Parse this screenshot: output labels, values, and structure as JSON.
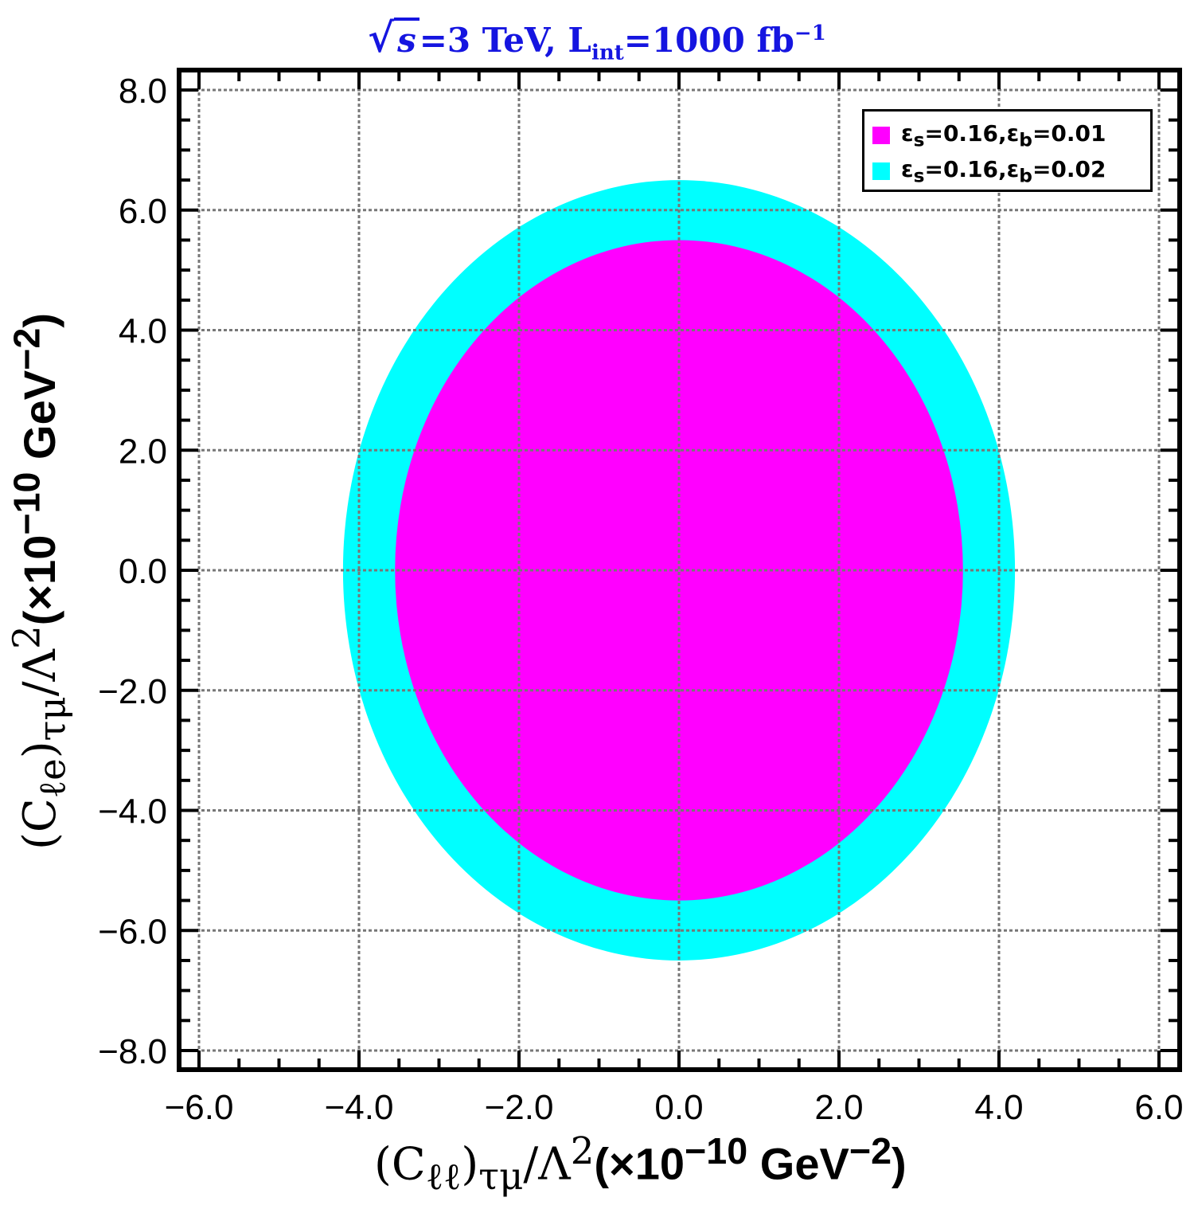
{
  "title": {
    "prefix": "s",
    "text": "=3 TeV, ",
    "lumi_symbol": "L",
    "lumi_sub": "int",
    "lumi_text": "=1000 fb",
    "lumi_sup": "−1"
  },
  "chart_data": {
    "type": "contour-region",
    "title": "√s=3 TeV, L_int=1000 fb^-1",
    "xlabel": "(C_ℓℓ)_τμ/Λ²(×10^-10 GeV^-2)",
    "ylabel": "(C_ℓe)_τμ/Λ²(×10^-10 GeV^-2)",
    "xlim": [
      -6.0,
      6.0
    ],
    "ylim": [
      -8.0,
      8.0
    ],
    "x_ticks": [
      -6.0,
      -4.0,
      -2.0,
      0.0,
      2.0,
      4.0,
      6.0
    ],
    "y_ticks": [
      -8.0,
      -6.0,
      -4.0,
      -2.0,
      0.0,
      2.0,
      4.0,
      6.0,
      8.0
    ],
    "x_tick_labels": [
      "−6.0",
      "−4.0",
      "−2.0",
      "0.0",
      "2.0",
      "4.0",
      "6.0"
    ],
    "y_tick_labels": [
      "−8.0",
      "−6.0",
      "−4.0",
      "−2.0",
      "0.0",
      "2.0",
      "4.0",
      "6.0",
      "8.0"
    ],
    "grid": true,
    "legend_position": "top-right",
    "series": [
      {
        "name": "ε_s=0.16,ε_b=0.02",
        "color": "#00ffff",
        "shape": "ellipse",
        "center": [
          0.0,
          0.0
        ],
        "x_range": [
          -4.2,
          4.2
        ],
        "y_range": [
          -6.5,
          6.5
        ]
      },
      {
        "name": "ε_s=0.16,ε_b=0.01",
        "color": "#ff00ff",
        "shape": "ellipse",
        "center": [
          0.0,
          0.0
        ],
        "x_range": [
          -3.55,
          3.55
        ],
        "y_range": [
          -5.5,
          5.5
        ]
      }
    ]
  },
  "axes": {
    "xlabel": {
      "main": "(C",
      "sub": "ℓℓ",
      "close": ")",
      "sub2": "τμ",
      "slash": "/Λ",
      "sup": "2",
      "unit_open": "(×10",
      "unit_sup": "−10",
      "unit_mid": " GeV",
      "unit_sup2": "−2",
      "unit_close": ")"
    },
    "ylabel": {
      "main": "(C",
      "sub": "ℓe",
      "close": ")",
      "sub2": "τμ",
      "slash": "/Λ",
      "sup": "2",
      "unit_open": "(×10",
      "unit_sup": "−10",
      "unit_mid": " GeV",
      "unit_sup2": "−2",
      "unit_close": ")"
    }
  },
  "legend": {
    "items": [
      {
        "eps_s": "ε",
        "s_sub": "s",
        "mid": "=0.16,",
        "eps_b": "ε",
        "b_sub": "b",
        "val": "=0.01",
        "color": "#ff00ff"
      },
      {
        "eps_s": "ε",
        "s_sub": "s",
        "mid": "=0.16,",
        "eps_b": "ε",
        "b_sub": "b",
        "val": "=0.02",
        "color": "#00ffff"
      }
    ]
  }
}
